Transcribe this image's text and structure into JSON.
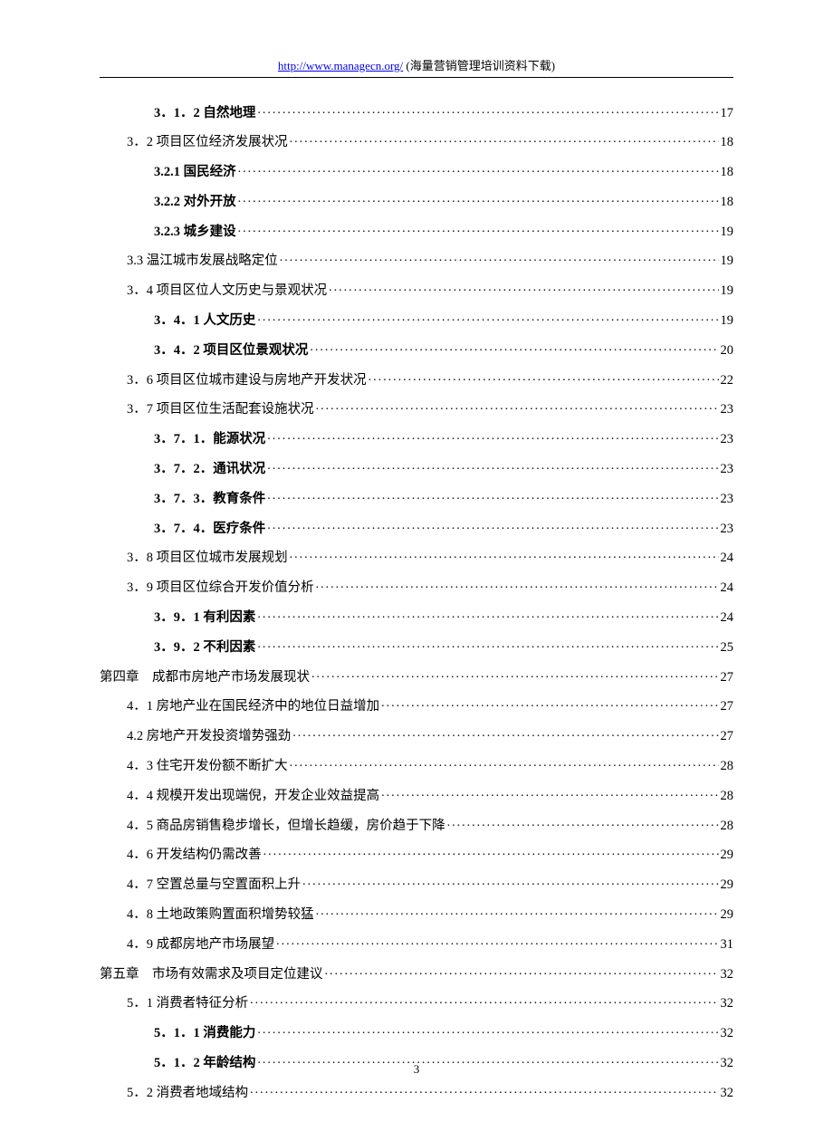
{
  "header": {
    "url": "http://www.managecn.org/",
    "tagline": " (海量营销管理培训资料下载)"
  },
  "footer": {
    "page_number": "3"
  },
  "style": {
    "link_color": "#0000ee",
    "text_color": "#000000",
    "bg_color": "#ffffff"
  },
  "toc": [
    {
      "label": "3．1．2 自然地理",
      "page": "17",
      "indent": 2,
      "bold": true
    },
    {
      "label": "3．2 项目区位经济发展状况",
      "page": "18",
      "indent": 1,
      "bold": false
    },
    {
      "label": "3.2.1 国民经济",
      "page": "18",
      "indent": 2,
      "bold": true
    },
    {
      "label": "3.2.2 对外开放",
      "page": "18",
      "indent": 2,
      "bold": true
    },
    {
      "label": "3.2.3 城乡建设",
      "page": "19",
      "indent": 2,
      "bold": true
    },
    {
      "label": "3.3 温江城市发展战略定位",
      "page": "19",
      "indent": 1,
      "bold": false
    },
    {
      "label": "3．4 项目区位人文历史与景观状况",
      "page": "19",
      "indent": 1,
      "bold": false
    },
    {
      "label": "3．4．1 人文历史",
      "page": "19",
      "indent": 2,
      "bold": true
    },
    {
      "label": "3．4．2 项目区位景观状况",
      "page": "20",
      "indent": 2,
      "bold": true
    },
    {
      "label": "3．6 项目区位城市建设与房地产开发状况",
      "page": "22",
      "indent": 1,
      "bold": false
    },
    {
      "label": "3．7 项目区位生活配套设施状况",
      "page": "23",
      "indent": 1,
      "bold": false
    },
    {
      "label": "3．7．1．能源状况",
      "page": "23",
      "indent": 2,
      "bold": true
    },
    {
      "label": "3．7．2．通讯状况",
      "page": "23",
      "indent": 2,
      "bold": true
    },
    {
      "label": "3．7．3．教育条件",
      "page": "23",
      "indent": 2,
      "bold": true
    },
    {
      "label": "3．7．4．医疗条件",
      "page": "23",
      "indent": 2,
      "bold": true
    },
    {
      "label": "3．8 项目区位城市发展规划",
      "page": "24",
      "indent": 1,
      "bold": false
    },
    {
      "label": "3．9 项目区位综合开发价值分析",
      "page": "24",
      "indent": 1,
      "bold": false
    },
    {
      "label": "3．9．1 有利因素",
      "page": "24",
      "indent": 2,
      "bold": true
    },
    {
      "label": "3．9．2 不利因素",
      "page": "25",
      "indent": 2,
      "bold": true
    },
    {
      "label": "第四章　成都市房地产市场发展现状",
      "page": "27",
      "indent": 0,
      "bold": false
    },
    {
      "label": "4．1 房地产业在国民经济中的地位日益增加",
      "page": "27",
      "indent": 1,
      "bold": false
    },
    {
      "label": "4.2 房地产开发投资增势强劲",
      "page": "27",
      "indent": 1,
      "bold": false
    },
    {
      "label": "4．3 住宅开发份额不断扩大",
      "page": "28",
      "indent": 1,
      "bold": false
    },
    {
      "label": "4．4 规模开发出现端倪，开发企业效益提高",
      "page": "28",
      "indent": 1,
      "bold": false
    },
    {
      "label": "4．5 商品房销售稳步增长，但增长趋缓，房价趋于下降",
      "page": "28",
      "indent": 1,
      "bold": false
    },
    {
      "label": "4．6 开发结构仍需改善",
      "page": "29",
      "indent": 1,
      "bold": false
    },
    {
      "label": "4．7 空置总量与空置面积上升",
      "page": "29",
      "indent": 1,
      "bold": false
    },
    {
      "label": "4．8 土地政策购置面积增势较猛",
      "page": "29",
      "indent": 1,
      "bold": false
    },
    {
      "label": "4．9 成都房地产市场展望",
      "page": "31",
      "indent": 1,
      "bold": false
    },
    {
      "label": "第五章　市场有效需求及项目定位建议",
      "page": "32",
      "indent": 0,
      "bold": false
    },
    {
      "label": "5．1 消费者特征分析",
      "page": "32",
      "indent": 1,
      "bold": false
    },
    {
      "label": "5．1．1 消费能力",
      "page": "32",
      "indent": 2,
      "bold": true
    },
    {
      "label": "5．1．2 年龄结构",
      "page": "32",
      "indent": 2,
      "bold": true
    },
    {
      "label": "5．2 消费者地域结构",
      "page": "32",
      "indent": 1,
      "bold": false
    }
  ]
}
